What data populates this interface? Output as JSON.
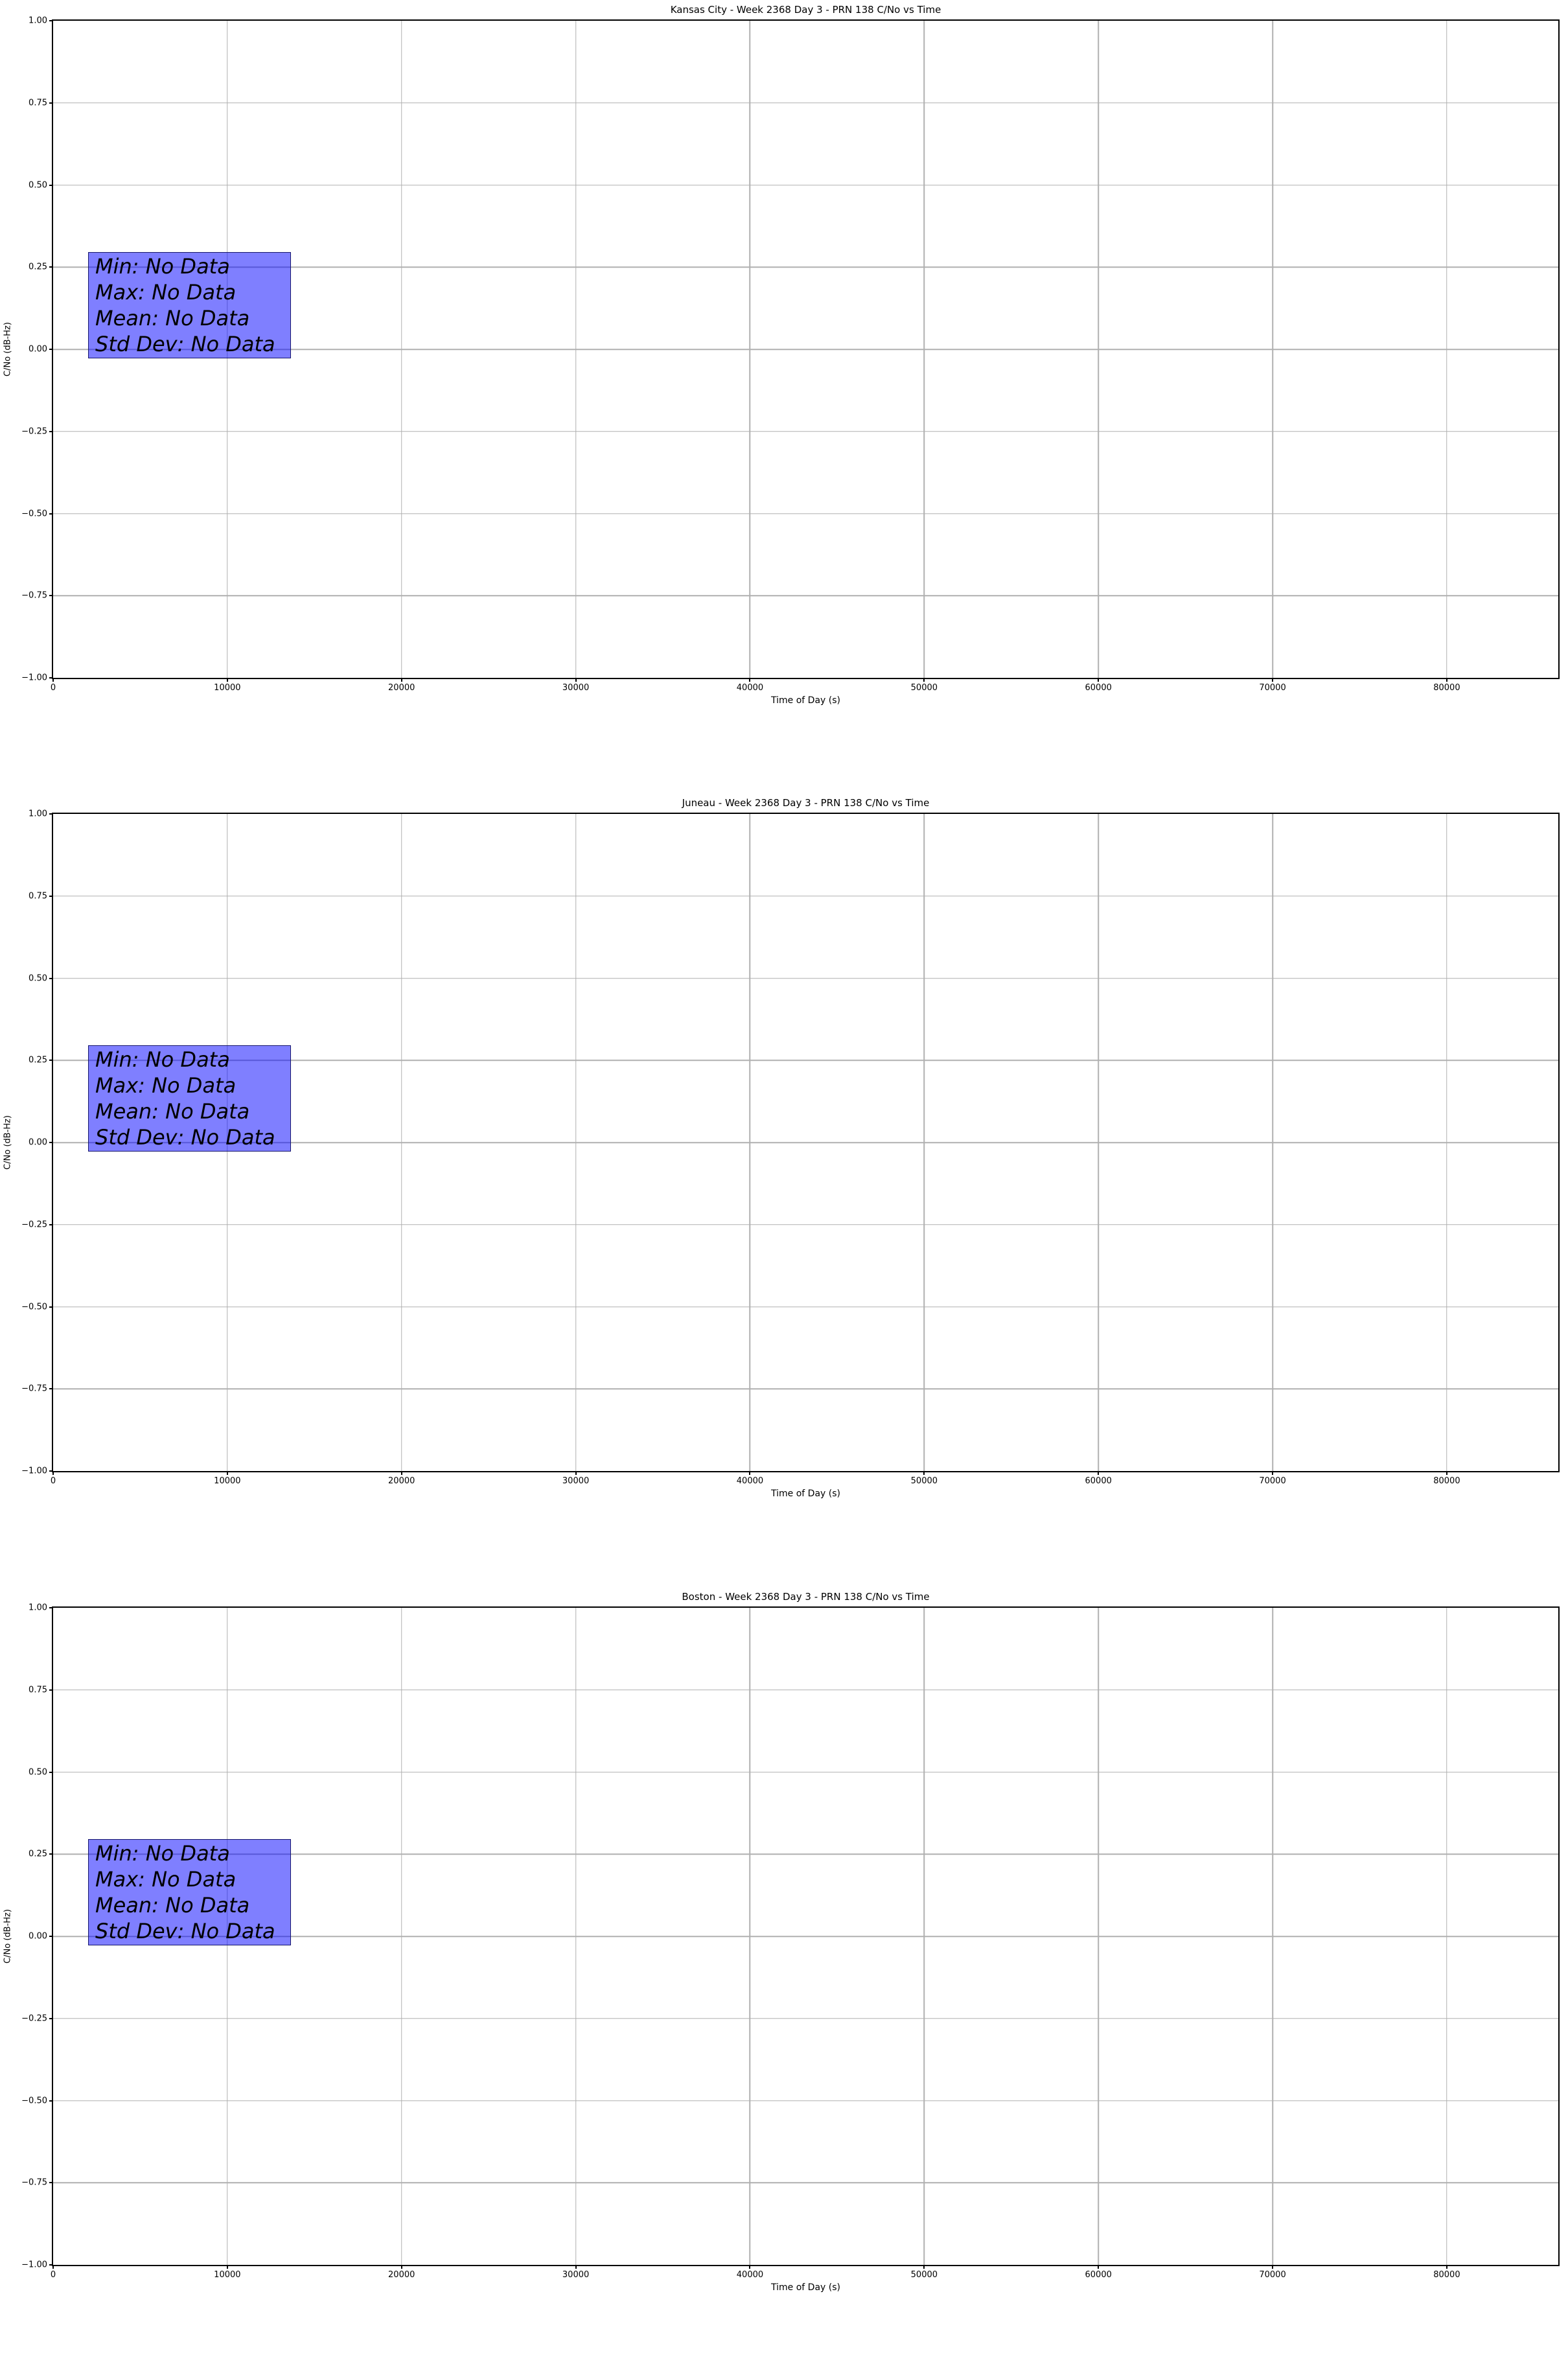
{
  "colors": {
    "grid": "#b0b0b0",
    "spine": "#000000",
    "stats_fill": "#0000ff",
    "stats_fill_alpha": 0.5,
    "stats_border": "#16166b",
    "text": "#000000",
    "background": "#ffffff"
  },
  "chart_data": [
    {
      "type": "line",
      "title": "Kansas City - Week 2368 Day 3 - PRN 138 C/No vs Time",
      "xlabel": "Time of Day (s)",
      "ylabel": "C/No (dB-Hz)",
      "xlim": [
        0,
        86400
      ],
      "ylim": [
        -1.0,
        1.0
      ],
      "xticks": [
        0,
        10000,
        20000,
        30000,
        40000,
        50000,
        60000,
        70000,
        80000
      ],
      "xtick_labels": [
        "0",
        "10000",
        "20000",
        "30000",
        "40000",
        "50000",
        "60000",
        "70000",
        "80000"
      ],
      "yticks": [
        1.0,
        0.75,
        0.5,
        0.25,
        0.0,
        -0.25,
        -0.5,
        -0.75,
        -1.0
      ],
      "ytick_labels": [
        "1.00",
        "0.75",
        "0.50",
        "0.25",
        "0.00",
        "−0.25",
        "−0.50",
        "−0.75",
        "−1.00"
      ],
      "grid": true,
      "legend": null,
      "series": [],
      "annotation_box": {
        "lines": [
          "Min: No Data",
          "Max: No Data",
          "Mean: No Data",
          "Std Dev: No Data"
        ]
      }
    },
    {
      "type": "line",
      "title": "Juneau - Week 2368 Day 3 - PRN 138 C/No vs Time",
      "xlabel": "Time of Day (s)",
      "ylabel": "C/No (dB-Hz)",
      "xlim": [
        0,
        86400
      ],
      "ylim": [
        -1.0,
        1.0
      ],
      "xticks": [
        0,
        10000,
        20000,
        30000,
        40000,
        50000,
        60000,
        70000,
        80000
      ],
      "xtick_labels": [
        "0",
        "10000",
        "20000",
        "30000",
        "40000",
        "50000",
        "60000",
        "70000",
        "80000"
      ],
      "yticks": [
        1.0,
        0.75,
        0.5,
        0.25,
        0.0,
        -0.25,
        -0.5,
        -0.75,
        -1.0
      ],
      "ytick_labels": [
        "1.00",
        "0.75",
        "0.50",
        "0.25",
        "0.00",
        "−0.25",
        "−0.50",
        "−0.75",
        "−1.00"
      ],
      "grid": true,
      "legend": null,
      "series": [],
      "annotation_box": {
        "lines": [
          "Min: No Data",
          "Max: No Data",
          "Mean: No Data",
          "Std Dev: No Data"
        ]
      }
    },
    {
      "type": "line",
      "title": "Boston - Week 2368 Day 3 - PRN 138 C/No vs Time",
      "xlabel": "Time of Day (s)",
      "ylabel": "C/No (dB-Hz)",
      "xlim": [
        0,
        86400
      ],
      "ylim": [
        -1.0,
        1.0
      ],
      "xticks": [
        0,
        10000,
        20000,
        30000,
        40000,
        50000,
        60000,
        70000,
        80000
      ],
      "xtick_labels": [
        "0",
        "10000",
        "20000",
        "30000",
        "40000",
        "50000",
        "60000",
        "70000",
        "80000"
      ],
      "yticks": [
        1.0,
        0.75,
        0.5,
        0.25,
        0.0,
        -0.25,
        -0.5,
        -0.75,
        -1.0
      ],
      "ytick_labels": [
        "1.00",
        "0.75",
        "0.50",
        "0.25",
        "0.00",
        "−0.25",
        "−0.50",
        "−0.75",
        "−1.00"
      ],
      "grid": true,
      "legend": null,
      "series": [],
      "annotation_box": {
        "lines": [
          "Min: No Data",
          "Max: No Data",
          "Mean: No Data",
          "Std Dev: No Data"
        ]
      }
    }
  ]
}
